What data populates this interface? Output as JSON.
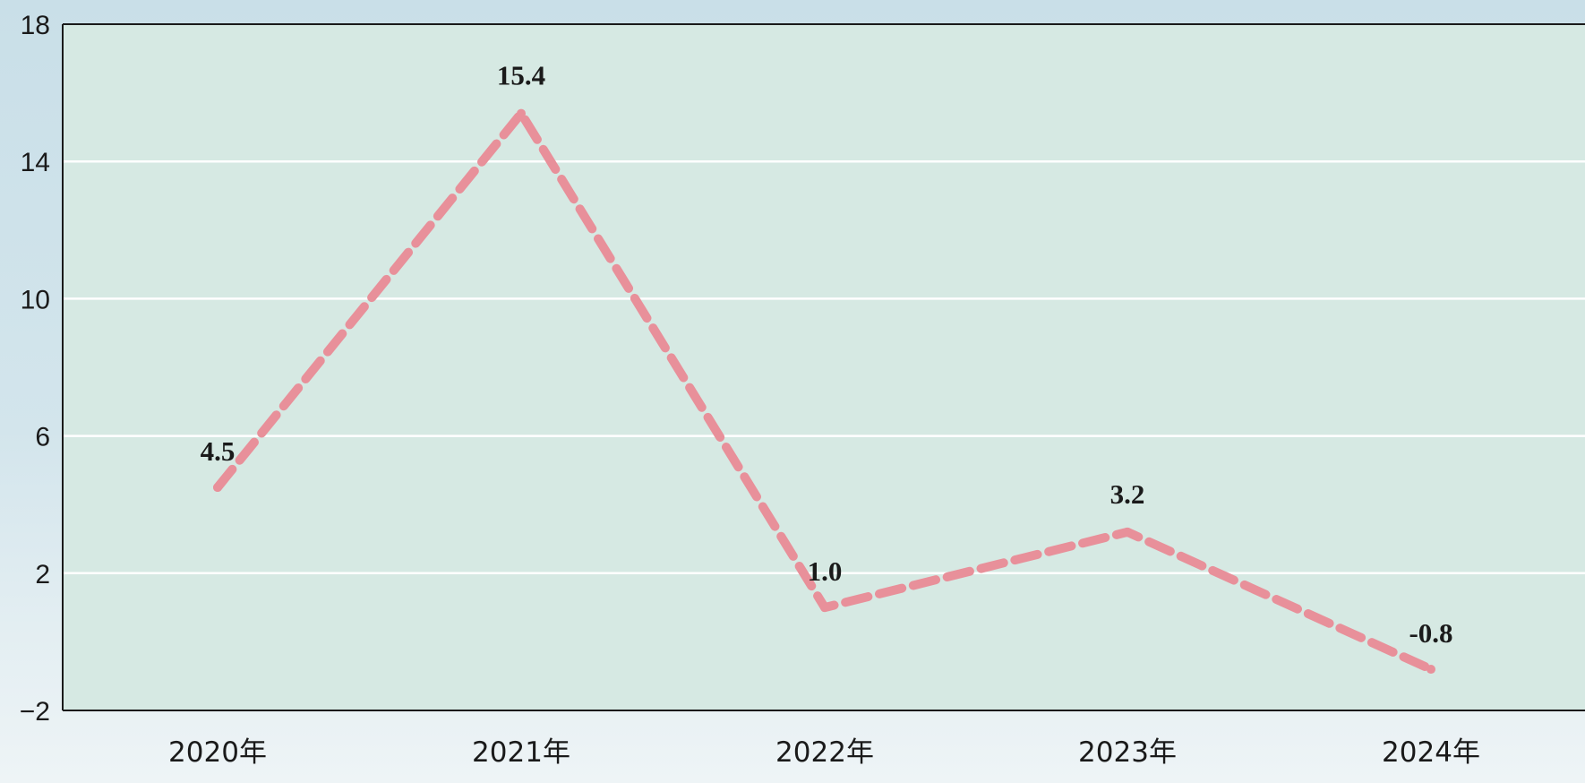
{
  "chart_data": {
    "type": "line",
    "categories": [
      "2020年",
      "2021年",
      "2022年",
      "2023年",
      "2024年"
    ],
    "values": [
      4.5,
      15.4,
      1.0,
      3.2,
      -0.8
    ],
    "data_labels": [
      "4.5",
      "15.4",
      "1.0",
      "3.2",
      "-0.8"
    ],
    "ylim": [
      -2,
      18
    ],
    "yticks": [
      -2,
      2,
      6,
      10,
      14,
      18
    ],
    "ytick_labels": [
      "−2",
      "2",
      "6",
      "10",
      "14",
      "18"
    ],
    "grid": "horizontal",
    "line_style": "dashed",
    "colors": {
      "line": "#e8909a",
      "plot_bg": "#d6e9e3",
      "grid": "#ffffff",
      "axis": "#1a1a1a"
    }
  }
}
